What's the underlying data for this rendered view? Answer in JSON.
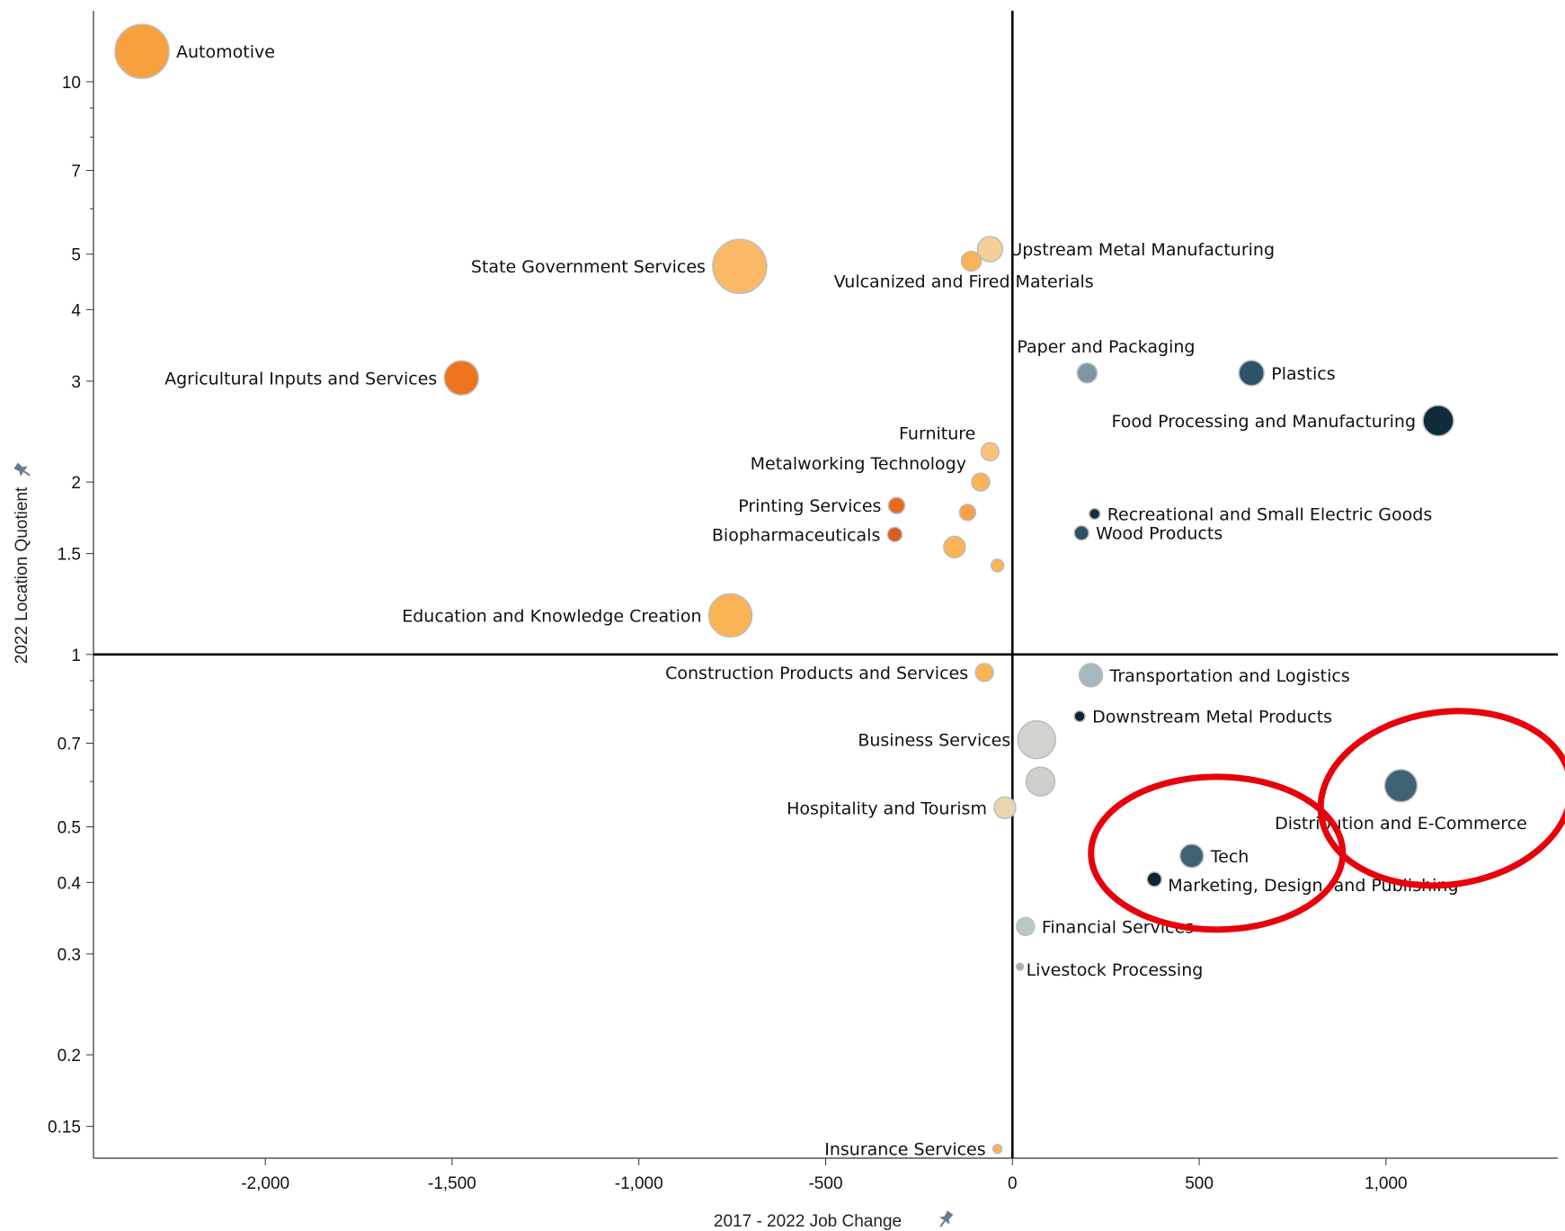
{
  "chart_data": {
    "type": "scatter",
    "title": "",
    "xlabel": "2017 - 2022 Job Change",
    "ylabel": "2022 Location Quotient",
    "xlim": [
      -2460,
      1460
    ],
    "ylim": [
      0.132,
      13.3
    ],
    "y_scale": "log",
    "x_ticks": [
      -2000,
      -1500,
      -1000,
      -500,
      0,
      500,
      1000
    ],
    "x_tick_labels": [
      "-2,000",
      "-1,500",
      "-1,000",
      "-500",
      "0",
      "500",
      "1,000"
    ],
    "y_ticks": [
      10,
      7,
      5,
      4,
      3,
      2,
      1.5,
      1,
      0.7,
      0.5,
      0.4,
      0.3,
      0.2,
      0.15
    ],
    "y_tick_labels": [
      "10",
      "7",
      "5",
      "4",
      "3",
      "2",
      "1.5",
      "1",
      "0.7",
      "0.5",
      "0.4",
      "0.3",
      "0.2",
      "0.15"
    ],
    "y_minor_ticks": [
      9,
      8,
      6,
      0.9,
      0.8,
      0.6
    ],
    "reference_lines": {
      "x": 0,
      "y": 1
    },
    "pin_icon": "pin-icon",
    "points": [
      {
        "label": "Automotive",
        "x": -2330,
        "y": 11.3,
        "size": 30,
        "color": "#f9a03f",
        "anchor": "end-right"
      },
      {
        "label": "State Government Services",
        "x": -730,
        "y": 4.76,
        "size": 30,
        "color": "#fbb866",
        "anchor": "left"
      },
      {
        "label": "Upstream Metal Manufacturing",
        "x": -60,
        "y": 5.1,
        "size": 14,
        "color": "#f5cf96",
        "anchor": "end-right"
      },
      {
        "label": "Vulcanized and Fired Materials",
        "x": -110,
        "y": 4.86,
        "size": 11,
        "color": "#f9b455",
        "anchor": "below-right"
      },
      {
        "label": "Agricultural Inputs and Services",
        "x": -1475,
        "y": 3.04,
        "size": 19,
        "color": "#ee7420",
        "anchor": "left"
      },
      {
        "label": "Paper and Packaging",
        "x": 200,
        "y": 3.1,
        "size": 11,
        "color": "#7c97a5",
        "anchor": "above"
      },
      {
        "label": "Plastics",
        "x": 640,
        "y": 3.1,
        "size": 14,
        "color": "#2d5366",
        "anchor": "right"
      },
      {
        "label": "Food Processing and Manufacturing",
        "x": 1140,
        "y": 2.56,
        "size": 17,
        "color": "#0f2c3a",
        "anchor": "left"
      },
      {
        "label": "Furniture",
        "x": -60,
        "y": 2.26,
        "size": 10,
        "color": "#fbc27a",
        "anchor": "above-left"
      },
      {
        "label": "Metalworking Technology",
        "x": -85,
        "y": 2.0,
        "size": 10,
        "color": "#f9b455",
        "anchor": "above-left"
      },
      {
        "label": "Printing Services",
        "x": -310,
        "y": 1.82,
        "size": 9,
        "color": "#e8691c",
        "anchor": "left"
      },
      {
        "label": "",
        "x": -120,
        "y": 1.77,
        "size": 9,
        "color": "#f6a044",
        "anchor": "none"
      },
      {
        "label": "Biopharmaceuticals",
        "x": -315,
        "y": 1.62,
        "size": 8,
        "color": "#d75d20",
        "anchor": "left"
      },
      {
        "label": "",
        "x": -155,
        "y": 1.54,
        "size": 12,
        "color": "#fbb455",
        "anchor": "none"
      },
      {
        "label": "",
        "x": -40,
        "y": 1.43,
        "size": 7,
        "color": "#f9b455",
        "anchor": "none"
      },
      {
        "label": "Recreational and Small Electric Goods",
        "x": 220,
        "y": 1.76,
        "size": 6,
        "color": "#12303d",
        "anchor": "right"
      },
      {
        "label": "Wood Products",
        "x": 185,
        "y": 1.63,
        "size": 8,
        "color": "#2d5366",
        "anchor": "right"
      },
      {
        "label": "Education and Knowledge Creation",
        "x": -755,
        "y": 1.17,
        "size": 24,
        "color": "#fbb455",
        "anchor": "left"
      },
      {
        "label": "Construction Products and Services",
        "x": -75,
        "y": 0.93,
        "size": 10,
        "color": "#f9b455",
        "anchor": "left"
      },
      {
        "label": "Transportation and Logistics",
        "x": 210,
        "y": 0.92,
        "size": 13,
        "color": "#a6b7bd",
        "anchor": "right"
      },
      {
        "label": "Downstream Metal Products",
        "x": 180,
        "y": 0.78,
        "size": 6,
        "color": "#0c2632",
        "anchor": "right"
      },
      {
        "label": "Business Services",
        "x": 65,
        "y": 0.71,
        "size": 21,
        "color": "#d2d3ce",
        "anchor": "left"
      },
      {
        "label": "",
        "x": 75,
        "y": 0.6,
        "size": 16,
        "color": "#cfd0cc",
        "anchor": "none"
      },
      {
        "label": "Hospitality and Tourism",
        "x": -20,
        "y": 0.54,
        "size": 12,
        "color": "#ead5b3",
        "anchor": "left"
      },
      {
        "label": "Distribution and E-Commerce",
        "x": 1040,
        "y": 0.59,
        "size": 18,
        "color": "#3f6275",
        "anchor": "below"
      },
      {
        "label": "Tech",
        "x": 480,
        "y": 0.445,
        "size": 13,
        "color": "#3f6275",
        "anchor": "right"
      },
      {
        "label": "Marketing, Design, and Publishing",
        "x": 380,
        "y": 0.405,
        "size": 8,
        "color": "#0c2632",
        "anchor": "below-right"
      },
      {
        "label": "Financial Services",
        "x": 35,
        "y": 0.335,
        "size": 10,
        "color": "#bac7c9",
        "anchor": "right"
      },
      {
        "label": "Livestock Processing",
        "x": 20,
        "y": 0.285,
        "size": 4,
        "color": "#9fb2bb",
        "anchor": "right"
      },
      {
        "label": "Insurance Services",
        "x": -40,
        "y": 0.137,
        "size": 5,
        "color": "#f9b455",
        "anchor": "left"
      }
    ],
    "annotations": [
      {
        "type": "ellipse",
        "color": "#e8000b",
        "around": "Tech"
      },
      {
        "type": "ellipse",
        "color": "#e8000b",
        "around": "Distribution and E-Commerce"
      }
    ]
  }
}
